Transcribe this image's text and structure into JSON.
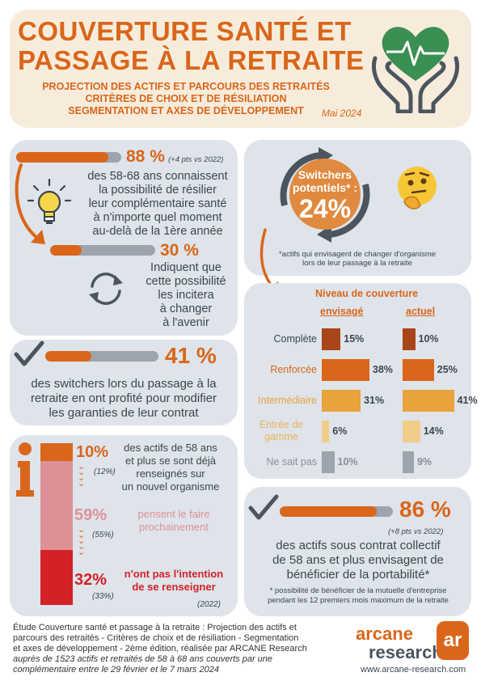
{
  "header": {
    "title_line1": "COUVERTURE SANTÉ ET",
    "title_line2": "PASSAGE À LA RETRAITE",
    "subtitle_line1": "PROJECTION DES ACTIFS ET PARCOURS DES RETRAITÉS",
    "subtitle_line2": "CRITÈRES DE CHOIX ET DE RÉSILIATION",
    "subtitle_line3": "SEGMENTATION ET AXES DE DÉVELOPPEMENT",
    "date": "Mai 2024"
  },
  "panel1": {
    "pct1": "88 %",
    "pct1_note": "(+4 pts vs 2022)",
    "pct1_fill": 0.88,
    "text1_line1": "des 58-68 ans connaissent",
    "text1_line2": "la possibilité de résilier",
    "text1_line3": "leur complémentaire santé",
    "text1_line4": "à n'importe quel moment",
    "text1_line5": "au-delà de la 1ère année",
    "pct2": "30 %",
    "pct2_fill": 0.3,
    "text2_line1": "Indiquent que",
    "text2_line2": "cette possibilité",
    "text2_line3": "les incitera",
    "text2_line4": "à changer",
    "text2_line5": "à l'avenir"
  },
  "panel2": {
    "switchers_label1": "Switchers",
    "switchers_label2": "potentiels* :",
    "switchers_pct": "24%",
    "note_line1": "*actifs qui envisagent de changer d'organisme",
    "note_line2": "lors de leur passage à la retraite"
  },
  "panel3": {
    "pct": "41 %",
    "pct_fill": 0.41,
    "text_line1": "des switchers lors du passage à la",
    "text_line2": "retraite en ont profité pour modifier",
    "text_line3": "les garanties de leur contrat"
  },
  "panel4": {
    "title": "Niveau de couverture",
    "col1": "envisagé",
    "col2": "actuel",
    "rows": [
      {
        "label": "Complète",
        "envisage": 15,
        "actuel": 10,
        "envisage_text": "15%",
        "actuel_text": "10%",
        "color": "#a8461a",
        "label_color": "#3c4652"
      },
      {
        "label": "Renforcée",
        "envisage": 38,
        "actuel": 25,
        "envisage_text": "38%",
        "actuel_text": "25%",
        "color": "#d9661a",
        "label_color": "#d9661a"
      },
      {
        "label": "Intermédiaire",
        "envisage": 31,
        "actuel": 41,
        "envisage_text": "31%",
        "actuel_text": "41%",
        "color": "#e8a33c",
        "label_color": "#e8a33c"
      },
      {
        "label1": "Entrée de",
        "label2": "gamme",
        "envisage": 6,
        "actuel": 14,
        "envisage_text": "6%",
        "actuel_text": "14%",
        "color": "#f2cd8a",
        "label_color": "#ebb35a"
      },
      {
        "label": "Ne sait pas",
        "envisage": 10,
        "actuel": 9,
        "envisage_text": "10%",
        "actuel_text": "9%",
        "color": "#9da4ad",
        "label_color": "#8a9099"
      }
    ]
  },
  "panel5": {
    "seg1_pct": "10%",
    "seg1_prev": "(12%)",
    "seg1_text_line1": "des actifs de 58 ans",
    "seg1_text_line2": "et plus se sont déjà",
    "seg1_text_line3": "renseignés sur",
    "seg1_text_line4": "un nouvel organisme",
    "seg2_pct": "59%",
    "seg2_prev": "(55%)",
    "seg2_text_line1": "pensent le faire",
    "seg2_text_line2": "prochainement",
    "seg3_pct": "32%",
    "seg3_prev": "(33%)",
    "seg3_text_line1": "n'ont pas l'intention",
    "seg3_text_line2": "de se renseigner",
    "year_note": "(2022)",
    "colors": {
      "seg1": "#d9661a",
      "seg2": "#dd9197",
      "seg3": "#d42128"
    }
  },
  "panel6": {
    "pct": "86 %",
    "pct_fill": 0.86,
    "pct_note": "(+8 pts vs 2022)",
    "text_line1": "des actifs sous contrat collectif",
    "text_line2": "de 58 ans et plus envisagent de",
    "text_line3": "bénéficier de la portabilité*",
    "note_line1": "* possibilité de bénéficier de la mutuelle d'entreprise",
    "note_line2": "pendant les 12 premiers mois maximum de la retraite"
  },
  "footer": {
    "line1": "Étude Couverture santé et passage à la retraite : Projection des actifs et",
    "line2": "parcours des retraités - Critères de choix et de résiliation - Segmentation",
    "line3": "et axes de développement - 2ème édition, réalisée par ARCANE Research",
    "line4": "auprès de 1523 actifs et retraités de 58 à 68 ans couverts par une",
    "line5": "complémentaire entre le 29 février et le 7 mars 2024",
    "logo_word1": "arcane",
    "logo_word2": "research",
    "logo_mark": "ar",
    "website": "www.arcane-research.com"
  }
}
